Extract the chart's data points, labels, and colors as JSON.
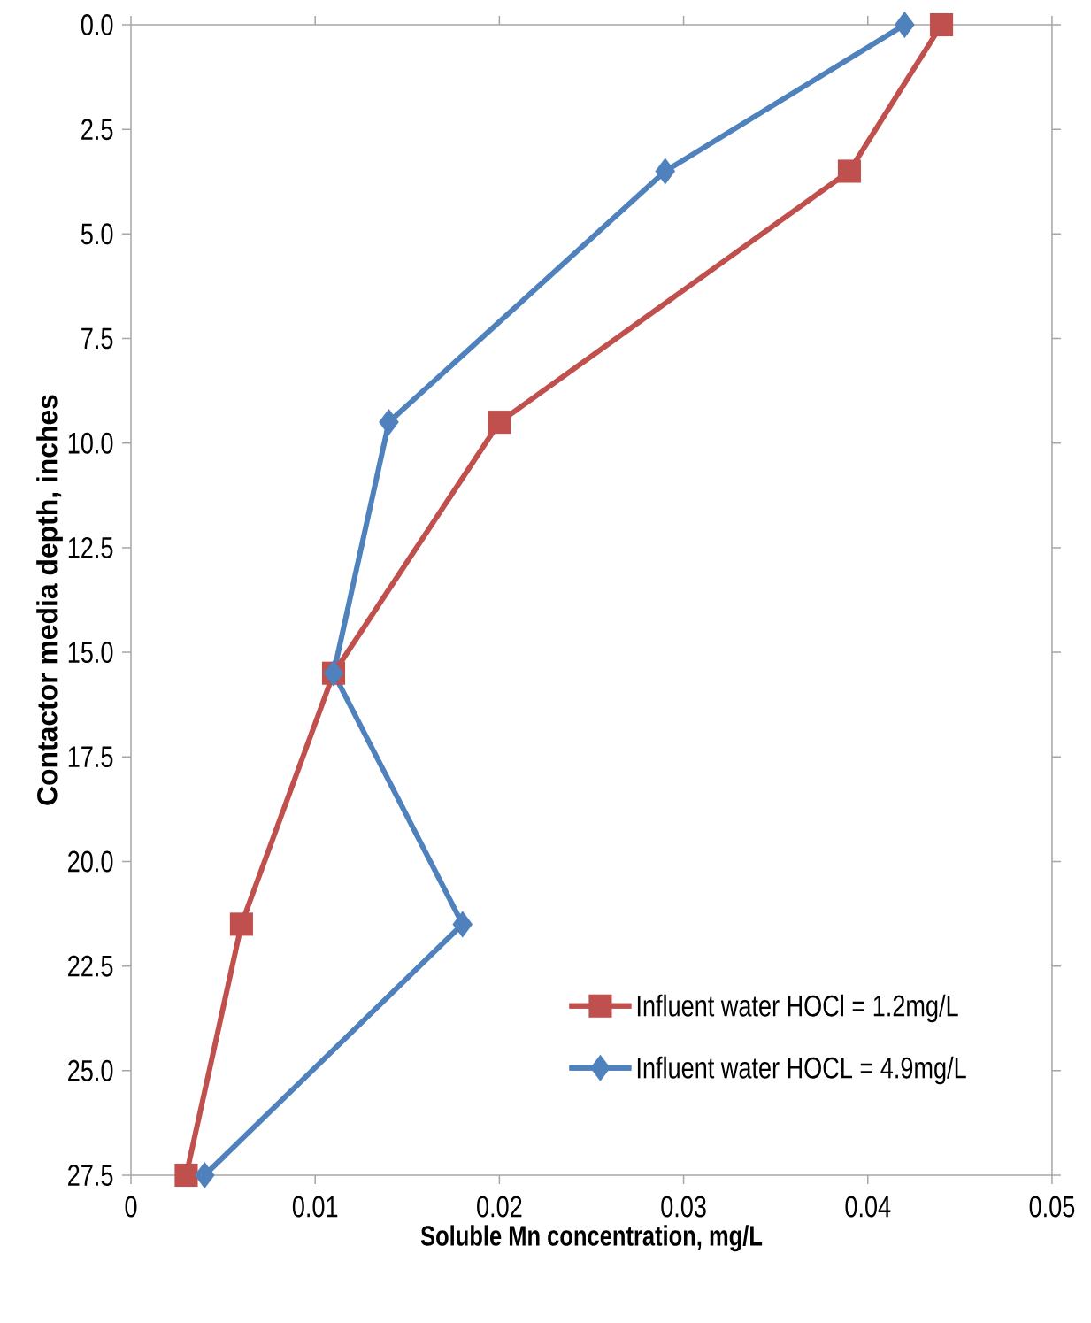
{
  "chart_data": {
    "type": "line",
    "xlabel": "Soluble Mn concentration, mg/L",
    "ylabel": "Contactor media depth,  inches",
    "series": [
      {
        "name": "Influent water HOCl = 1.2mg/L",
        "color": "#c0504d",
        "marker": "square",
        "x": [
          0.044,
          0.039,
          0.02,
          0.011,
          0.006,
          0.003
        ],
        "values": [
          0,
          3.5,
          9.5,
          15.5,
          21.5,
          27.5
        ]
      },
      {
        "name": "Influent water HOCL = 4.9mg/L",
        "color": "#4f81bd",
        "marker": "diamond",
        "x": [
          0.042,
          0.029,
          0.014,
          0.011,
          0.018,
          0.004
        ],
        "values": [
          0,
          3.5,
          9.5,
          15.5,
          21.5,
          27.5
        ]
      }
    ],
    "xlim": [
      0,
      0.05
    ],
    "xticks": [
      0,
      0.01,
      0.02,
      0.03,
      0.04,
      0.05
    ],
    "ylim": [
      27.5,
      0
    ],
    "yticks": [
      {
        "value": 0,
        "label": "0.0"
      },
      {
        "value": 2.5,
        "label": "2.5"
      },
      {
        "value": 5,
        "label": "5.0"
      },
      {
        "value": 7.5,
        "label": "7.5"
      },
      {
        "value": 10,
        "label": "10.0"
      },
      {
        "value": 12.5,
        "label": "12.5"
      },
      {
        "value": 15,
        "label": "15.0"
      },
      {
        "value": 17.5,
        "label": "17.5"
      },
      {
        "value": 20,
        "label": "20.0"
      },
      {
        "value": 22.5,
        "label": "22.5"
      },
      {
        "value": 25,
        "label": "25.0"
      },
      {
        "value": 27.5,
        "label": "27.5"
      }
    ],
    "grid": false,
    "legend": "bottom right"
  }
}
